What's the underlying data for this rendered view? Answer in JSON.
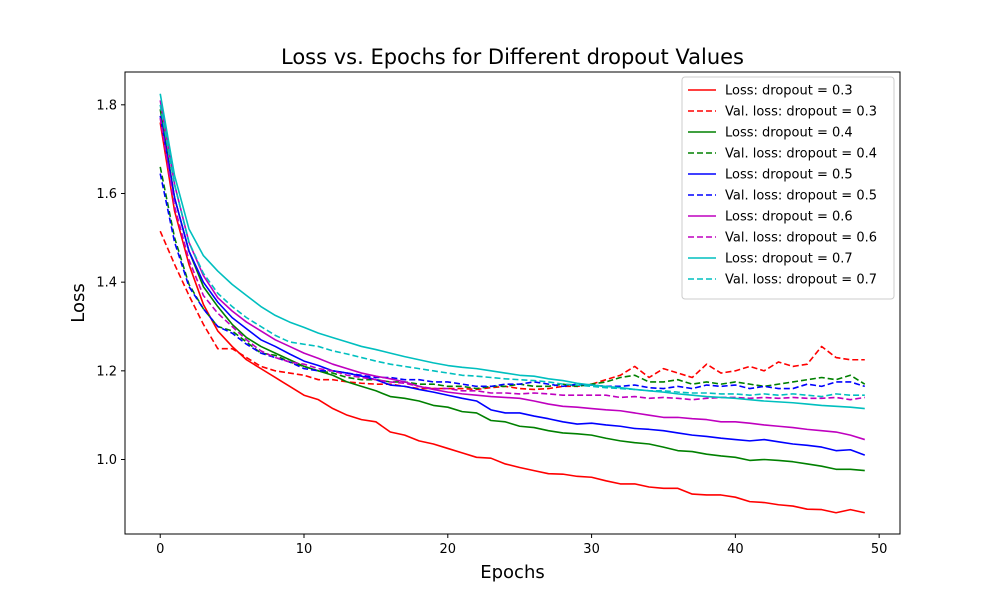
{
  "chart_data": {
    "type": "line",
    "title": "Loss vs. Epochs for Different dropout Values",
    "xlabel": "Epochs",
    "ylabel": "Loss",
    "xlim": [
      -2.45,
      51.45
    ],
    "ylim": [
      0.832,
      1.874
    ],
    "xticks": [
      0,
      10,
      20,
      30,
      40,
      50
    ],
    "yticks": [
      1.0,
      1.2,
      1.4,
      1.6,
      1.8
    ],
    "ytick_labels": [
      "1.0",
      "1.2",
      "1.4",
      "1.6",
      "1.8"
    ],
    "grid": false,
    "legend_position": "upper-right",
    "x": [
      0,
      1,
      2,
      3,
      4,
      5,
      6,
      7,
      8,
      9,
      10,
      11,
      12,
      13,
      14,
      15,
      16,
      17,
      18,
      19,
      20,
      21,
      22,
      23,
      24,
      25,
      26,
      27,
      28,
      29,
      30,
      31,
      32,
      33,
      34,
      35,
      36,
      37,
      38,
      39,
      40,
      41,
      42,
      43,
      44,
      45,
      46,
      47,
      48,
      49
    ],
    "series": [
      {
        "name": "Loss: dropout = 0.3",
        "color": "#ff0000",
        "dash": "solid",
        "values": [
          1.76,
          1.56,
          1.44,
          1.35,
          1.29,
          1.255,
          1.225,
          1.205,
          1.185,
          1.165,
          1.145,
          1.135,
          1.115,
          1.1,
          1.09,
          1.085,
          1.062,
          1.055,
          1.042,
          1.035,
          1.025,
          1.015,
          1.005,
          1.003,
          0.99,
          0.982,
          0.975,
          0.968,
          0.967,
          0.962,
          0.96,
          0.952,
          0.945,
          0.945,
          0.938,
          0.935,
          0.935,
          0.922,
          0.92,
          0.92,
          0.915,
          0.905,
          0.903,
          0.898,
          0.895,
          0.888,
          0.887,
          0.88,
          0.887,
          0.88
        ]
      },
      {
        "name": "Val. loss: dropout = 0.3",
        "color": "#ff0000",
        "dash": "dashed",
        "values": [
          1.515,
          1.44,
          1.37,
          1.305,
          1.25,
          1.25,
          1.23,
          1.21,
          1.2,
          1.195,
          1.19,
          1.18,
          1.18,
          1.175,
          1.172,
          1.17,
          1.17,
          1.165,
          1.16,
          1.16,
          1.16,
          1.16,
          1.158,
          1.162,
          1.165,
          1.16,
          1.158,
          1.16,
          1.165,
          1.165,
          1.17,
          1.18,
          1.19,
          1.21,
          1.185,
          1.205,
          1.195,
          1.185,
          1.215,
          1.195,
          1.2,
          1.21,
          1.2,
          1.22,
          1.21,
          1.215,
          1.255,
          1.23,
          1.225,
          1.225
        ]
      },
      {
        "name": "Loss: dropout = 0.4",
        "color": "#008000",
        "dash": "solid",
        "values": [
          1.79,
          1.59,
          1.47,
          1.39,
          1.345,
          1.305,
          1.275,
          1.255,
          1.24,
          1.225,
          1.21,
          1.2,
          1.19,
          1.175,
          1.165,
          1.155,
          1.142,
          1.138,
          1.132,
          1.122,
          1.118,
          1.108,
          1.105,
          1.088,
          1.085,
          1.075,
          1.072,
          1.065,
          1.06,
          1.058,
          1.055,
          1.048,
          1.042,
          1.038,
          1.035,
          1.028,
          1.02,
          1.018,
          1.012,
          1.008,
          1.005,
          0.998,
          1.0,
          0.998,
          0.995,
          0.99,
          0.985,
          0.978,
          0.978,
          0.975
        ]
      },
      {
        "name": "Val. loss: dropout = 0.4",
        "color": "#008000",
        "dash": "dashed",
        "values": [
          1.66,
          1.5,
          1.395,
          1.34,
          1.3,
          1.29,
          1.265,
          1.24,
          1.235,
          1.22,
          1.21,
          1.2,
          1.195,
          1.185,
          1.18,
          1.18,
          1.175,
          1.175,
          1.17,
          1.17,
          1.165,
          1.165,
          1.16,
          1.165,
          1.165,
          1.17,
          1.165,
          1.165,
          1.17,
          1.165,
          1.17,
          1.175,
          1.185,
          1.19,
          1.175,
          1.175,
          1.18,
          1.17,
          1.175,
          1.17,
          1.175,
          1.17,
          1.165,
          1.17,
          1.175,
          1.18,
          1.185,
          1.18,
          1.19,
          1.17
        ]
      },
      {
        "name": "Loss: dropout = 0.5",
        "color": "#0000ff",
        "dash": "solid",
        "values": [
          1.775,
          1.59,
          1.47,
          1.4,
          1.355,
          1.32,
          1.295,
          1.27,
          1.255,
          1.238,
          1.222,
          1.212,
          1.2,
          1.195,
          1.188,
          1.18,
          1.168,
          1.165,
          1.158,
          1.152,
          1.145,
          1.138,
          1.132,
          1.112,
          1.105,
          1.105,
          1.098,
          1.092,
          1.085,
          1.08,
          1.082,
          1.078,
          1.075,
          1.07,
          1.068,
          1.065,
          1.06,
          1.055,
          1.052,
          1.048,
          1.045,
          1.042,
          1.045,
          1.04,
          1.035,
          1.032,
          1.028,
          1.02,
          1.022,
          1.01
        ]
      },
      {
        "name": "Val. loss: dropout = 0.5",
        "color": "#0000ff",
        "dash": "dashed",
        "values": [
          1.645,
          1.49,
          1.39,
          1.34,
          1.3,
          1.285,
          1.26,
          1.24,
          1.23,
          1.22,
          1.205,
          1.2,
          1.2,
          1.195,
          1.19,
          1.185,
          1.185,
          1.18,
          1.18,
          1.175,
          1.175,
          1.17,
          1.165,
          1.165,
          1.17,
          1.17,
          1.175,
          1.17,
          1.165,
          1.17,
          1.168,
          1.165,
          1.165,
          1.168,
          1.162,
          1.16,
          1.165,
          1.16,
          1.168,
          1.165,
          1.168,
          1.16,
          1.165,
          1.16,
          1.16,
          1.17,
          1.165,
          1.175,
          1.175,
          1.165
        ]
      },
      {
        "name": "Loss: dropout = 0.6",
        "color": "#bf00bf",
        "dash": "solid",
        "values": [
          1.81,
          1.62,
          1.49,
          1.415,
          1.365,
          1.335,
          1.31,
          1.29,
          1.27,
          1.255,
          1.24,
          1.228,
          1.215,
          1.205,
          1.195,
          1.188,
          1.182,
          1.175,
          1.165,
          1.158,
          1.152,
          1.148,
          1.145,
          1.142,
          1.14,
          1.138,
          1.132,
          1.125,
          1.12,
          1.118,
          1.115,
          1.112,
          1.11,
          1.105,
          1.1,
          1.095,
          1.095,
          1.092,
          1.09,
          1.085,
          1.085,
          1.082,
          1.078,
          1.075,
          1.072,
          1.068,
          1.065,
          1.062,
          1.055,
          1.045
        ]
      },
      {
        "name": "Val. loss: dropout = 0.6",
        "color": "#bf00bf",
        "dash": "dashed",
        "values": [
          1.77,
          1.57,
          1.45,
          1.37,
          1.33,
          1.3,
          1.27,
          1.245,
          1.23,
          1.22,
          1.215,
          1.205,
          1.2,
          1.19,
          1.185,
          1.18,
          1.175,
          1.172,
          1.165,
          1.16,
          1.16,
          1.155,
          1.155,
          1.15,
          1.15,
          1.148,
          1.15,
          1.148,
          1.145,
          1.145,
          1.145,
          1.145,
          1.14,
          1.142,
          1.138,
          1.14,
          1.138,
          1.135,
          1.138,
          1.14,
          1.14,
          1.138,
          1.14,
          1.138,
          1.14,
          1.138,
          1.138,
          1.14,
          1.135,
          1.14
        ]
      },
      {
        "name": "Loss: dropout = 0.7",
        "color": "#00bfbf",
        "dash": "solid",
        "values": [
          1.825,
          1.64,
          1.52,
          1.46,
          1.425,
          1.395,
          1.37,
          1.345,
          1.325,
          1.31,
          1.298,
          1.285,
          1.275,
          1.265,
          1.255,
          1.248,
          1.24,
          1.232,
          1.225,
          1.218,
          1.212,
          1.208,
          1.205,
          1.2,
          1.195,
          1.19,
          1.188,
          1.182,
          1.178,
          1.172,
          1.168,
          1.165,
          1.162,
          1.158,
          1.155,
          1.152,
          1.148,
          1.145,
          1.142,
          1.14,
          1.138,
          1.135,
          1.132,
          1.13,
          1.128,
          1.125,
          1.122,
          1.12,
          1.118,
          1.115
        ]
      },
      {
        "name": "Val. loss: dropout = 0.7",
        "color": "#00bfbf",
        "dash": "dashed",
        "values": [
          1.8,
          1.62,
          1.49,
          1.42,
          1.375,
          1.345,
          1.32,
          1.3,
          1.28,
          1.265,
          1.26,
          1.255,
          1.245,
          1.238,
          1.23,
          1.222,
          1.215,
          1.21,
          1.205,
          1.2,
          1.195,
          1.19,
          1.188,
          1.185,
          1.182,
          1.18,
          1.178,
          1.175,
          1.17,
          1.168,
          1.165,
          1.162,
          1.16,
          1.158,
          1.155,
          1.155,
          1.152,
          1.15,
          1.15,
          1.148,
          1.148,
          1.145,
          1.148,
          1.145,
          1.148,
          1.145,
          1.142,
          1.148,
          1.145,
          1.145
        ]
      }
    ]
  }
}
